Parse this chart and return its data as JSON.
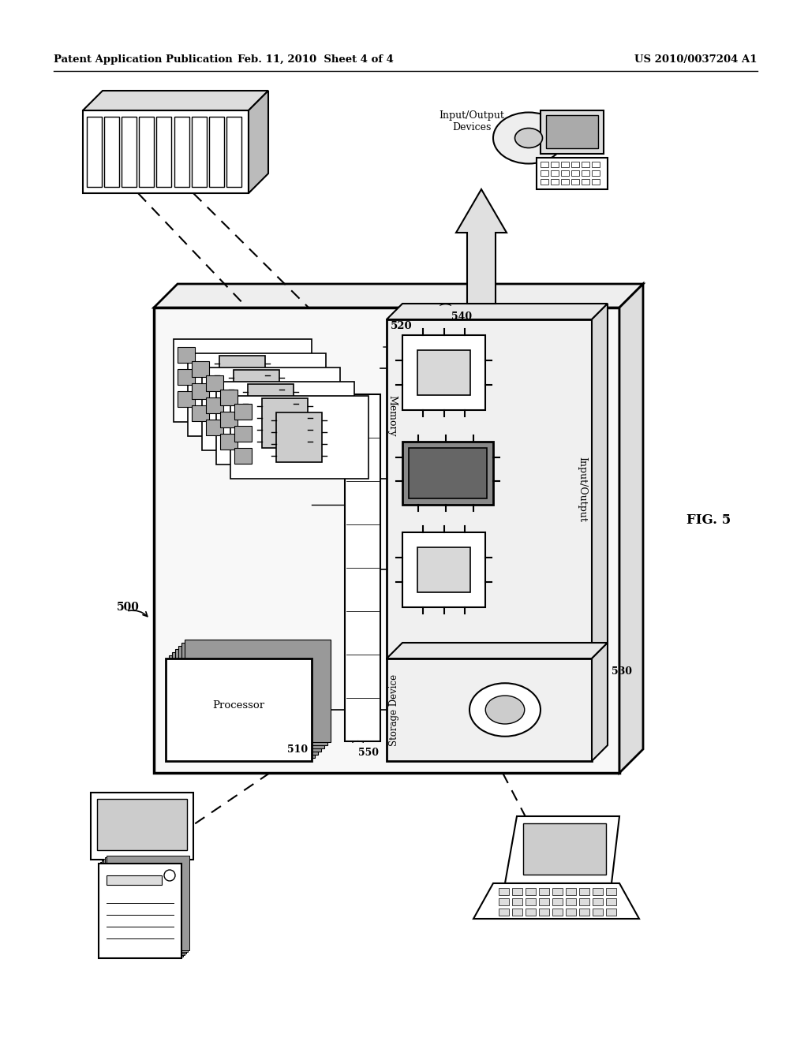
{
  "header_left": "Patent Application Publication",
  "header_mid": "Feb. 11, 2010  Sheet 4 of 4",
  "header_right": "US 2010/0037204 A1",
  "fig_label": "FIG. 5",
  "label_500": "500",
  "label_510": "510",
  "label_520": "520",
  "label_530": "530",
  "label_540": "540",
  "label_550": "550",
  "text_processor": "Processor",
  "text_memory": "Memory",
  "text_storage": "Storage Device",
  "text_io_label": "Input/Output",
  "text_io_devices": "Input/Output\nDevices",
  "background": "#ffffff"
}
